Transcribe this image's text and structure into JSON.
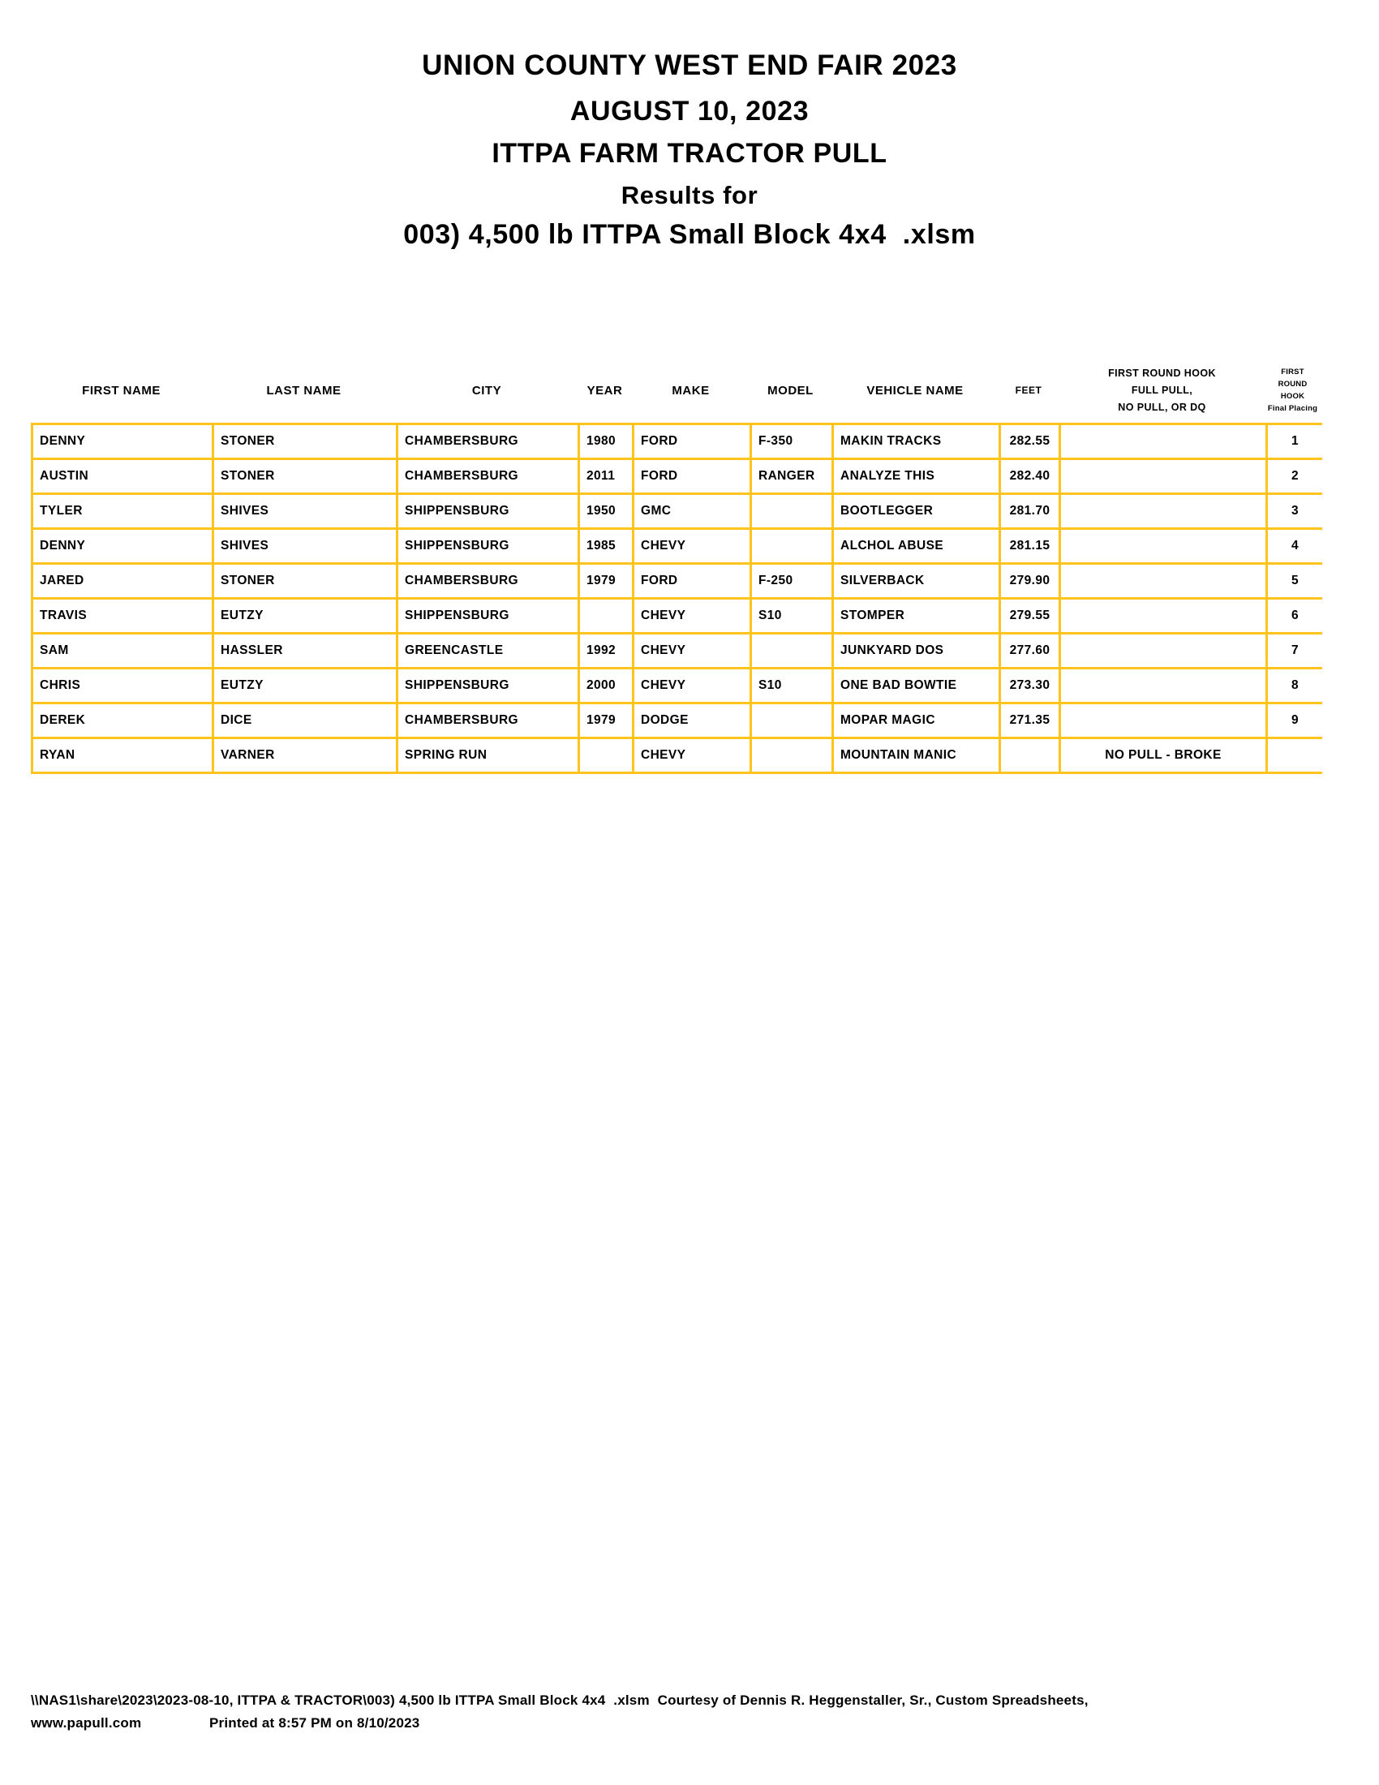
{
  "colors": {
    "border": "#FFC41E",
    "text": "#000000"
  },
  "header": {
    "title_lines": [
      "UNION COUNTY WEST END FAIR 2023",
      "AUGUST 10, 2023",
      "ITTPA FARM TRACTOR PULL",
      "Results for",
      "003) 4,500 lb ITTPA Small Block 4x4  .xlsm"
    ]
  },
  "table": {
    "columns": [
      {
        "key": "first_name",
        "label_lines": [
          "FIRST NAME"
        ],
        "align": "left"
      },
      {
        "key": "last_name",
        "label_lines": [
          "LAST NAME"
        ],
        "align": "left"
      },
      {
        "key": "city",
        "label_lines": [
          "CITY"
        ],
        "align": "left"
      },
      {
        "key": "year",
        "label_lines": [
          "YEAR"
        ],
        "align": "left"
      },
      {
        "key": "make",
        "label_lines": [
          "MAKE"
        ],
        "align": "left"
      },
      {
        "key": "model",
        "label_lines": [
          "MODEL"
        ],
        "align": "left"
      },
      {
        "key": "vehicle_name",
        "label_lines": [
          "VEHICLE NAME"
        ],
        "align": "left"
      },
      {
        "key": "feet",
        "label_lines": [
          "FEET"
        ],
        "align": "center",
        "small_header": true
      },
      {
        "key": "hook_result",
        "label_lines": [
          "FIRST ROUND HOOK",
          "FULL PULL,",
          "NO PULL, OR DQ"
        ],
        "align": "center",
        "multiline": true
      },
      {
        "key": "placing",
        "label_lines": [
          "FIRST ROUND",
          "HOOK",
          "Final Placing"
        ],
        "align": "center",
        "multiline": true,
        "tiny": true
      }
    ],
    "rows": [
      {
        "first_name": "DENNY",
        "last_name": "STONER",
        "city": "CHAMBERSBURG",
        "year": "1980",
        "make": "FORD",
        "model": "F-350",
        "vehicle_name": "MAKIN TRACKS",
        "feet": "282.55",
        "hook_result": "",
        "placing": "1"
      },
      {
        "first_name": "AUSTIN",
        "last_name": "STONER",
        "city": "CHAMBERSBURG",
        "year": "2011",
        "make": "FORD",
        "model": "RANGER",
        "vehicle_name": "ANALYZE THIS",
        "feet": "282.40",
        "hook_result": "",
        "placing": "2"
      },
      {
        "first_name": "TYLER",
        "last_name": "SHIVES",
        "city": "SHIPPENSBURG",
        "year": "1950",
        "make": "GMC",
        "model": "",
        "vehicle_name": "BOOTLEGGER",
        "feet": "281.70",
        "hook_result": "",
        "placing": "3"
      },
      {
        "first_name": "DENNY",
        "last_name": "SHIVES",
        "city": "SHIPPENSBURG",
        "year": "1985",
        "make": "CHEVY",
        "model": "",
        "vehicle_name": "ALCHOL ABUSE",
        "feet": "281.15",
        "hook_result": "",
        "placing": "4"
      },
      {
        "first_name": "JARED",
        "last_name": "STONER",
        "city": "CHAMBERSBURG",
        "year": "1979",
        "make": "FORD",
        "model": "F-250",
        "vehicle_name": "SILVERBACK",
        "feet": "279.90",
        "hook_result": "",
        "placing": "5"
      },
      {
        "first_name": "TRAVIS",
        "last_name": "EUTZY",
        "city": "SHIPPENSBURG",
        "year": "",
        "make": "CHEVY",
        "model": "S10",
        "vehicle_name": "STOMPER",
        "feet": "279.55",
        "hook_result": "",
        "placing": "6"
      },
      {
        "first_name": "SAM",
        "last_name": "HASSLER",
        "city": "GREENCASTLE",
        "year": "1992",
        "make": "CHEVY",
        "model": "",
        "vehicle_name": "JUNKYARD DOS",
        "feet": "277.60",
        "hook_result": "",
        "placing": "7"
      },
      {
        "first_name": "CHRIS",
        "last_name": "EUTZY",
        "city": "SHIPPENSBURG",
        "year": "2000",
        "make": "CHEVY",
        "model": "S10",
        "vehicle_name": "ONE BAD BOWTIE",
        "feet": "273.30",
        "hook_result": "",
        "placing": "8"
      },
      {
        "first_name": "DEREK",
        "last_name": "DICE",
        "city": "CHAMBERSBURG",
        "year": "1979",
        "make": "DODGE",
        "model": "",
        "vehicle_name": "MOPAR MAGIC",
        "feet": "271.35",
        "hook_result": "",
        "placing": "9"
      },
      {
        "first_name": "RYAN",
        "last_name": "VARNER",
        "city": "SPRING RUN",
        "year": "",
        "make": "CHEVY",
        "model": "",
        "vehicle_name": "MOUNTAIN MANIC",
        "feet": "",
        "hook_result": "NO PULL - BROKE",
        "placing": ""
      }
    ]
  },
  "footer": {
    "path_line": "\\\\NAS1\\share\\2023\\2023-08-10, ITTPA & TRACTOR\\003) 4,500 lb ITTPA Small Block 4x4  .xlsm  Courtesy of Dennis R. Heggenstaller, Sr., Custom Spreadsheets,",
    "website": "www.papull.com",
    "printed": "Printed at 8:57 PM on 8/10/2023"
  }
}
